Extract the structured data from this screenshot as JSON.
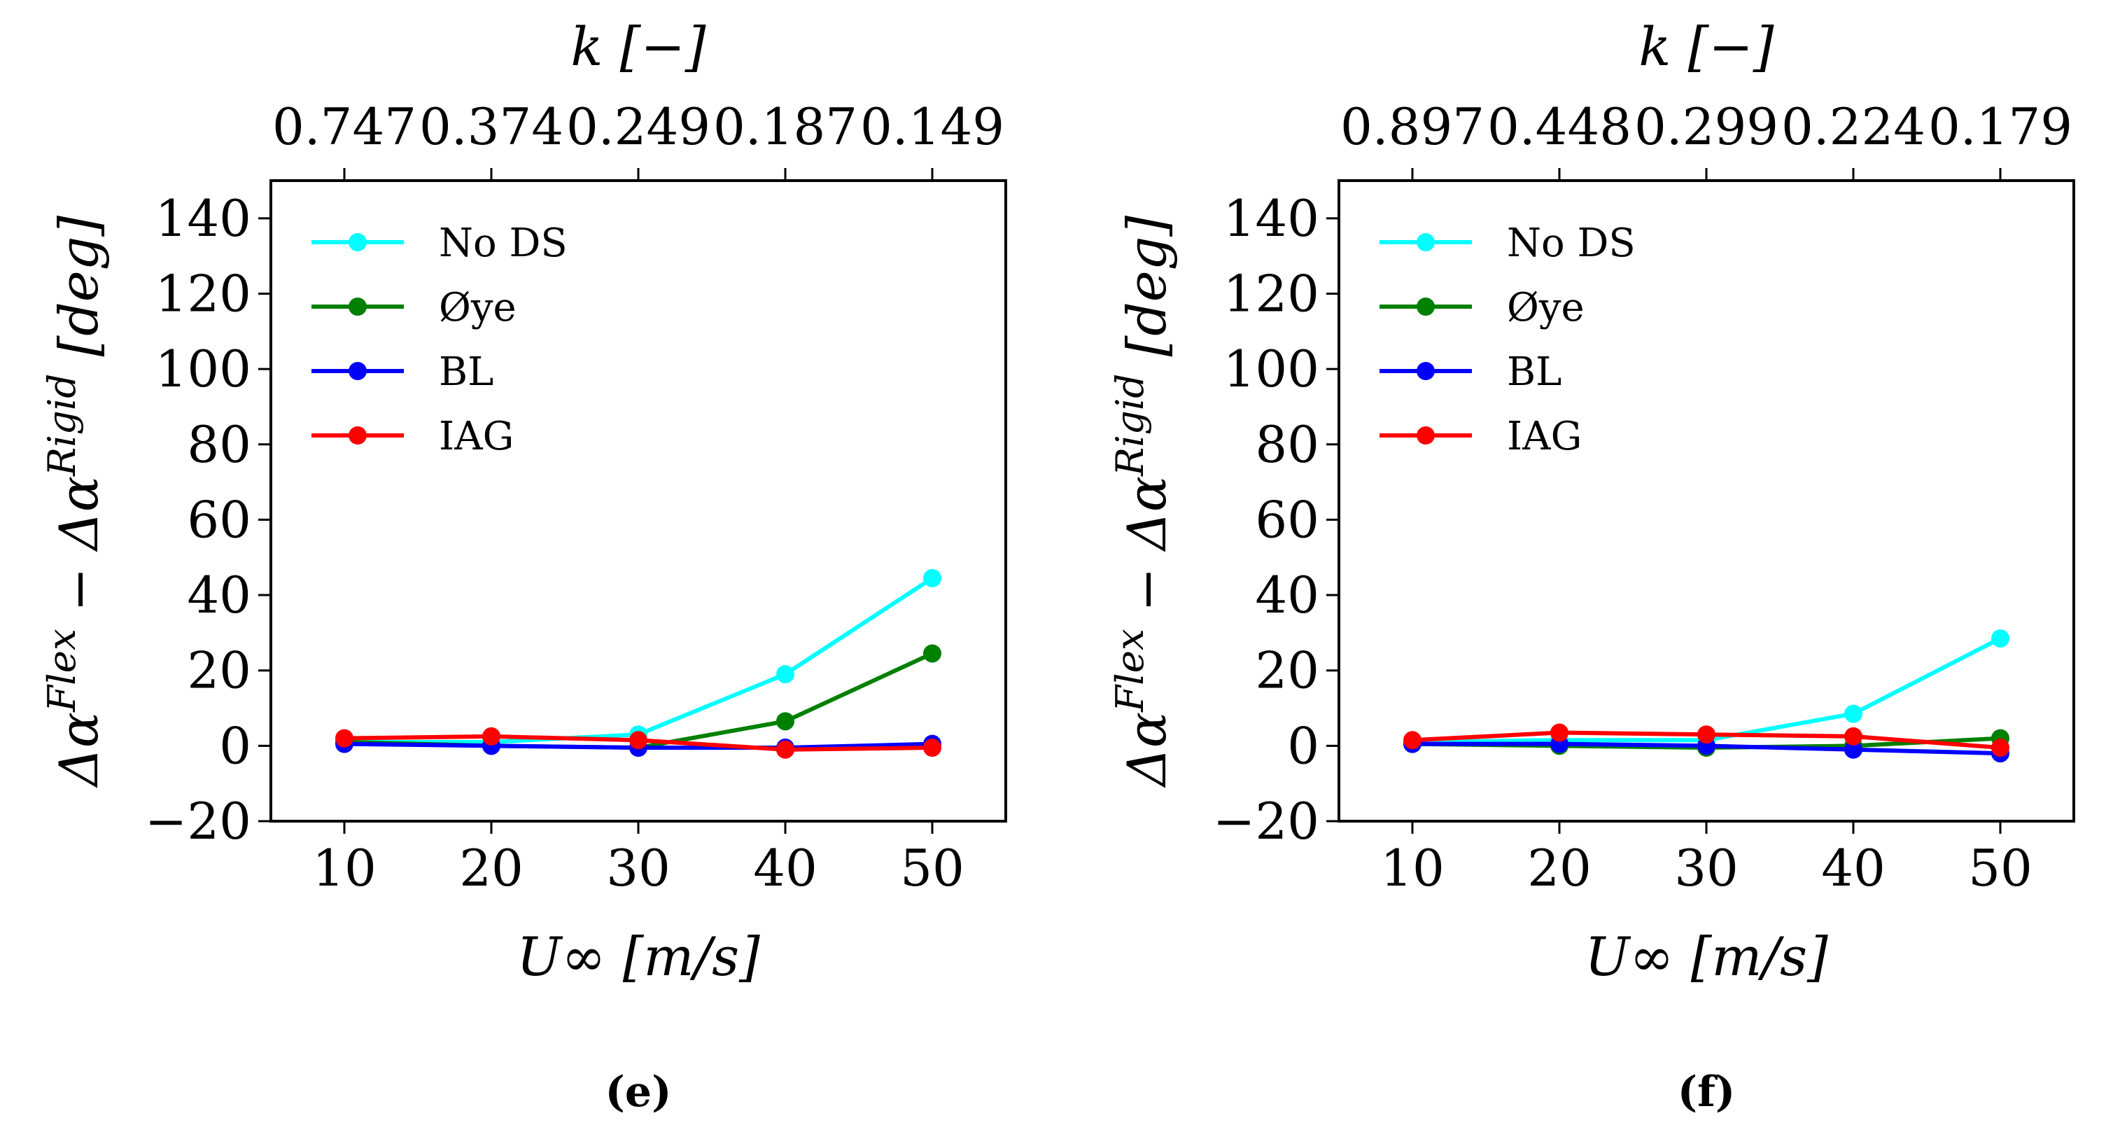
{
  "chart_data": [
    {
      "type": "line",
      "panel_label": "(e)",
      "xlabel": "U∞ [m/s]",
      "ylabel": "Δα^Flex − Δα^Rigid [deg]",
      "top_xlabel": "k [−]",
      "x": [
        10,
        20,
        30,
        40,
        50
      ],
      "xticks": [
        10,
        20,
        30,
        40,
        50
      ],
      "top_xtick_labels": [
        "0.747",
        "0.374",
        "0.249",
        "0.187",
        "0.149"
      ],
      "xlim": [
        5,
        55
      ],
      "ylim": [
        -20,
        150
      ],
      "yticks": [
        -20,
        0,
        20,
        40,
        60,
        80,
        100,
        120,
        140
      ],
      "ytick_labels": [
        "−20",
        "0",
        "20",
        "40",
        "60",
        "80",
        "100",
        "120",
        "140"
      ],
      "legend_position": "upper-left",
      "series": [
        {
          "name": "No DS",
          "color": "#00ffff",
          "values": [
            1,
            1,
            3,
            19,
            44.5
          ]
        },
        {
          "name": "Øye",
          "color": "#008000",
          "values": [
            1,
            0,
            -0.5,
            6.5,
            24.5
          ]
        },
        {
          "name": "BL",
          "color": "#0000ff",
          "values": [
            0.5,
            0,
            -0.5,
            -0.5,
            0.5
          ]
        },
        {
          "name": "IAG",
          "color": "#ff0000",
          "values": [
            2,
            2.5,
            1.5,
            -1,
            -0.5
          ]
        }
      ]
    },
    {
      "type": "line",
      "panel_label": "(f)",
      "xlabel": "U∞ [m/s]",
      "ylabel": "Δα^Flex − Δα^Rigid [deg]",
      "top_xlabel": "k [−]",
      "x": [
        10,
        20,
        30,
        40,
        50
      ],
      "xticks": [
        10,
        20,
        30,
        40,
        50
      ],
      "top_xtick_labels": [
        "0.897",
        "0.448",
        "0.299",
        "0.224",
        "0.179"
      ],
      "xlim": [
        5,
        55
      ],
      "ylim": [
        -20,
        150
      ],
      "yticks": [
        -20,
        0,
        20,
        40,
        60,
        80,
        100,
        120,
        140
      ],
      "ytick_labels": [
        "−20",
        "0",
        "20",
        "40",
        "60",
        "80",
        "100",
        "120",
        "140"
      ],
      "legend_position": "upper-left",
      "series": [
        {
          "name": "No DS",
          "color": "#00ffff",
          "values": [
            1,
            1.5,
            1.5,
            8.5,
            28.5
          ]
        },
        {
          "name": "Øye",
          "color": "#008000",
          "values": [
            0.5,
            0,
            -0.5,
            0,
            2
          ]
        },
        {
          "name": "BL",
          "color": "#0000ff",
          "values": [
            0.5,
            0.5,
            0,
            -1,
            -2
          ]
        },
        {
          "name": "IAG",
          "color": "#ff0000",
          "values": [
            1.5,
            3.5,
            3,
            2.5,
            -0.5
          ]
        }
      ]
    }
  ]
}
